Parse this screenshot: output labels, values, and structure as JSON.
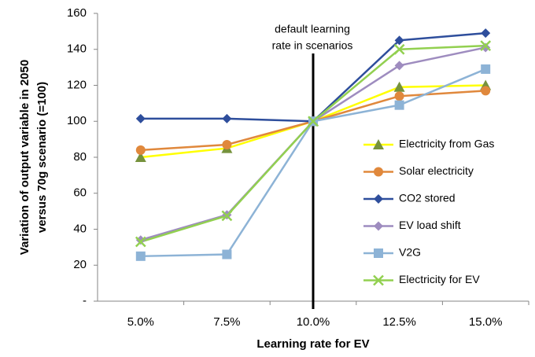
{
  "chart_data": {
    "type": "line",
    "x_label": "Learning rate for EV",
    "y_label": [
      "Variation of output variable in 2050",
      "versus 70g scenario (=100)"
    ],
    "annotation": {
      "lines": [
        "default learning",
        "rate in scenarios"
      ],
      "at": "10.0%"
    },
    "categories": [
      "5.0%",
      "7.5%",
      "10.0%",
      "12.5%",
      "15.0%"
    ],
    "ylim": [
      0,
      160
    ],
    "yticks": [
      {
        "value": 0,
        "label": "-"
      },
      20,
      40,
      60,
      80,
      100,
      120,
      140,
      160
    ],
    "grid": false,
    "legend": "right",
    "series": [
      {
        "name": "Electricity from Gas",
        "color": "#ffff00",
        "marker_color": "#76923c",
        "marker": "triangle",
        "values": [
          80,
          85,
          100,
          119,
          120
        ]
      },
      {
        "name": "Solar electricity",
        "color": "#e0883c",
        "marker_color": "#e0883c",
        "marker": "circle",
        "values": [
          84,
          87,
          100,
          114,
          117
        ]
      },
      {
        "name": "CO2 stored",
        "color": "#2e4e9c",
        "marker_color": "#2e4e9c",
        "marker": "diamond",
        "values": [
          101.5,
          101.5,
          100,
          145,
          149
        ]
      },
      {
        "name": "EV load shift",
        "color": "#9e8cbf",
        "marker_color": "#9e8cbf",
        "marker": "diamond",
        "values": [
          34,
          48,
          100,
          131,
          141
        ]
      },
      {
        "name": "V2G",
        "color": "#8db3d6",
        "marker_color": "#8db3d6",
        "marker": "square",
        "values": [
          25,
          26,
          100,
          109,
          129
        ]
      },
      {
        "name": "Electricity for EV",
        "color": "#92d050",
        "marker_color": "#92d050",
        "marker": "x",
        "values": [
          33,
          47.5,
          100,
          140,
          142
        ]
      }
    ]
  }
}
